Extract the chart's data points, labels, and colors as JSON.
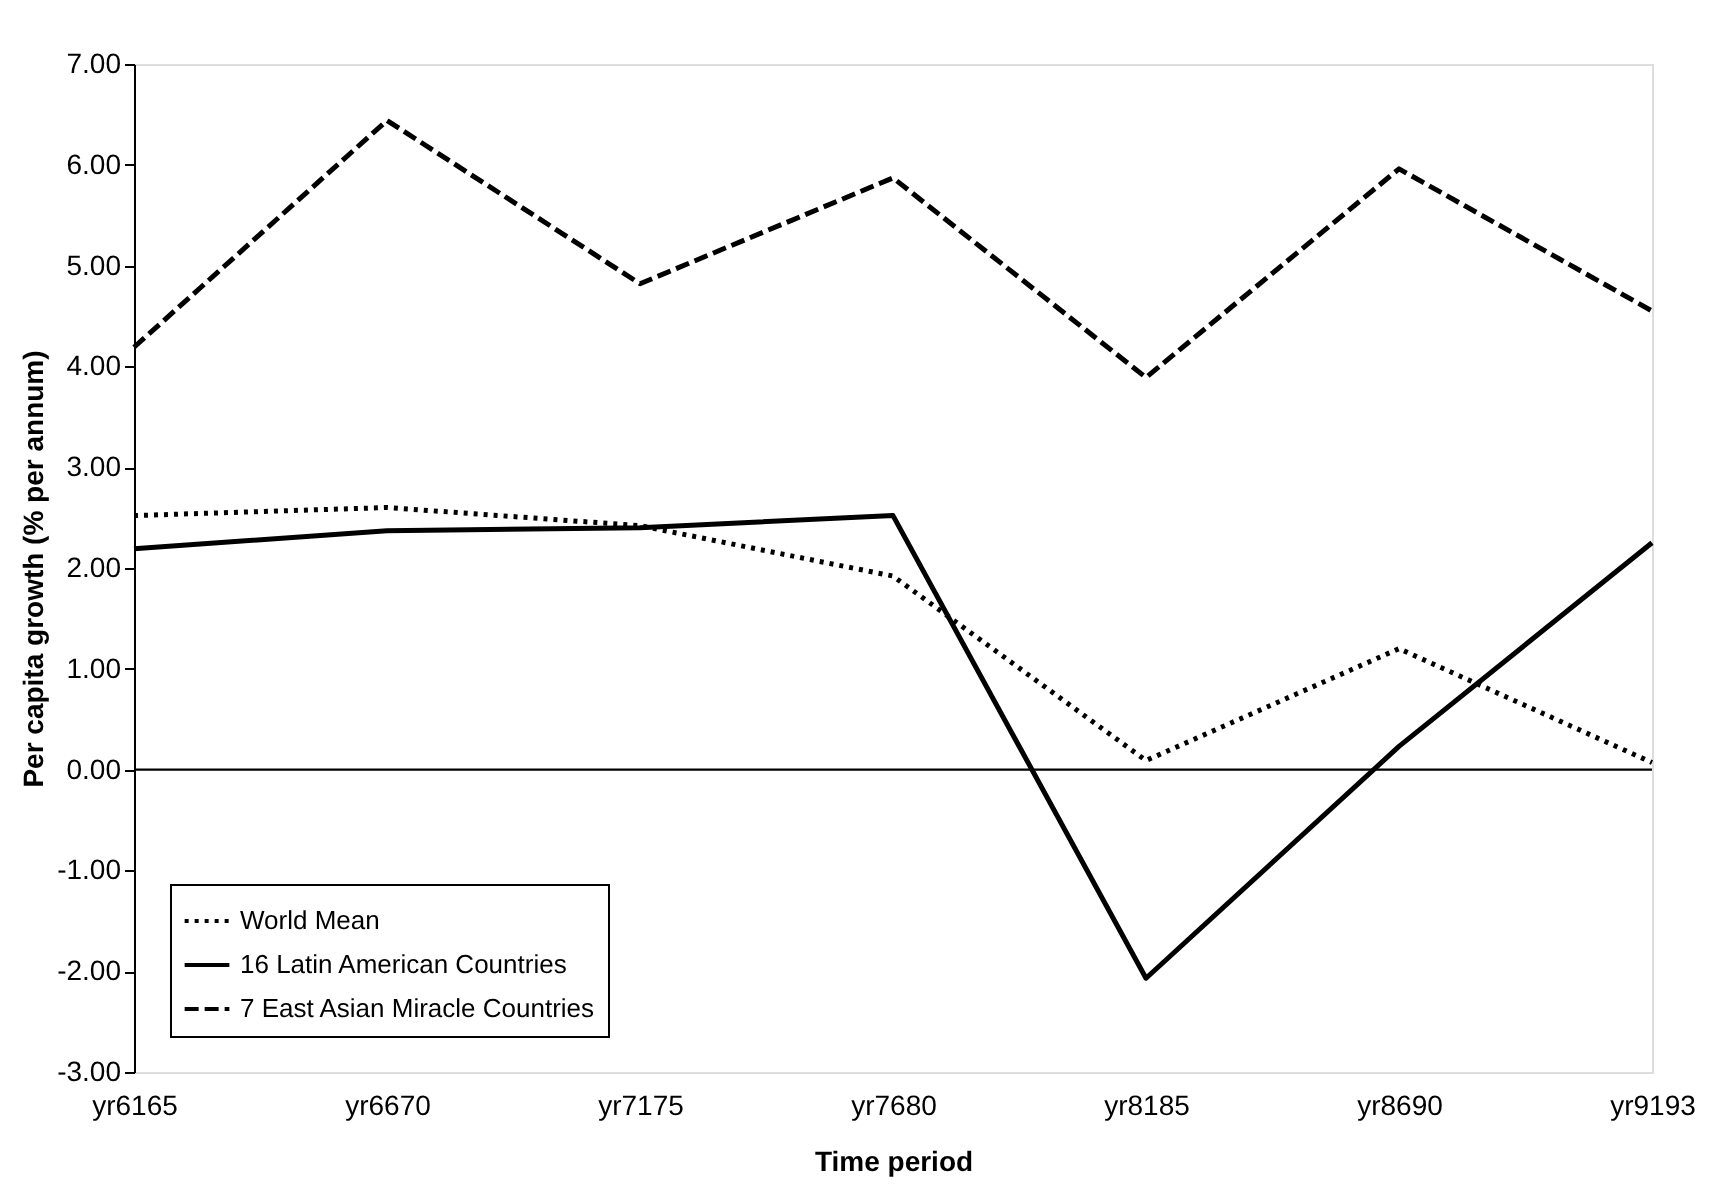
{
  "chart_data": {
    "type": "line",
    "xlabel": "Time period",
    "ylabel": "Per capita growth (% per annum)",
    "categories": [
      "yr6165",
      "yr6670",
      "yr7175",
      "yr7680",
      "yr8185",
      "yr8690",
      "yr9193"
    ],
    "series": [
      {
        "name": "World Mean",
        "color": "#000000",
        "line_style": "dotted",
        "values": [
          2.52,
          2.6,
          2.42,
          1.92,
          0.09,
          1.2,
          0.07
        ]
      },
      {
        "name": "16 Latin American Countries",
        "color": "#000000",
        "line_style": "solid",
        "values": [
          2.19,
          2.37,
          2.4,
          2.52,
          -2.07,
          0.23,
          2.25
        ]
      },
      {
        "name": "7 East Asian Miracle Countries",
        "color": "#000000",
        "line_style": "dashed",
        "values": [
          4.19,
          6.44,
          4.82,
          5.87,
          3.89,
          5.96,
          4.55
        ]
      }
    ],
    "ylim": [
      -3,
      7
    ],
    "yticks": [
      {
        "value": -3,
        "label": "-3.00"
      },
      {
        "value": -2,
        "label": "-2.00"
      },
      {
        "value": -1,
        "label": "-1.00"
      },
      {
        "value": 0,
        "label": "0.00"
      },
      {
        "value": 1,
        "label": "1.00"
      },
      {
        "value": 2,
        "label": "2.00"
      },
      {
        "value": 3,
        "label": "3.00"
      },
      {
        "value": 4,
        "label": "4.00"
      },
      {
        "value": 5,
        "label": "5.00"
      },
      {
        "value": 6,
        "label": "6.00"
      },
      {
        "value": 7,
        "label": "7.00"
      }
    ],
    "ref_lines": [
      {
        "axis": "y",
        "value": 0,
        "color": "#000000"
      }
    ],
    "grid": false,
    "legend": "bottom left",
    "marker": "none"
  }
}
